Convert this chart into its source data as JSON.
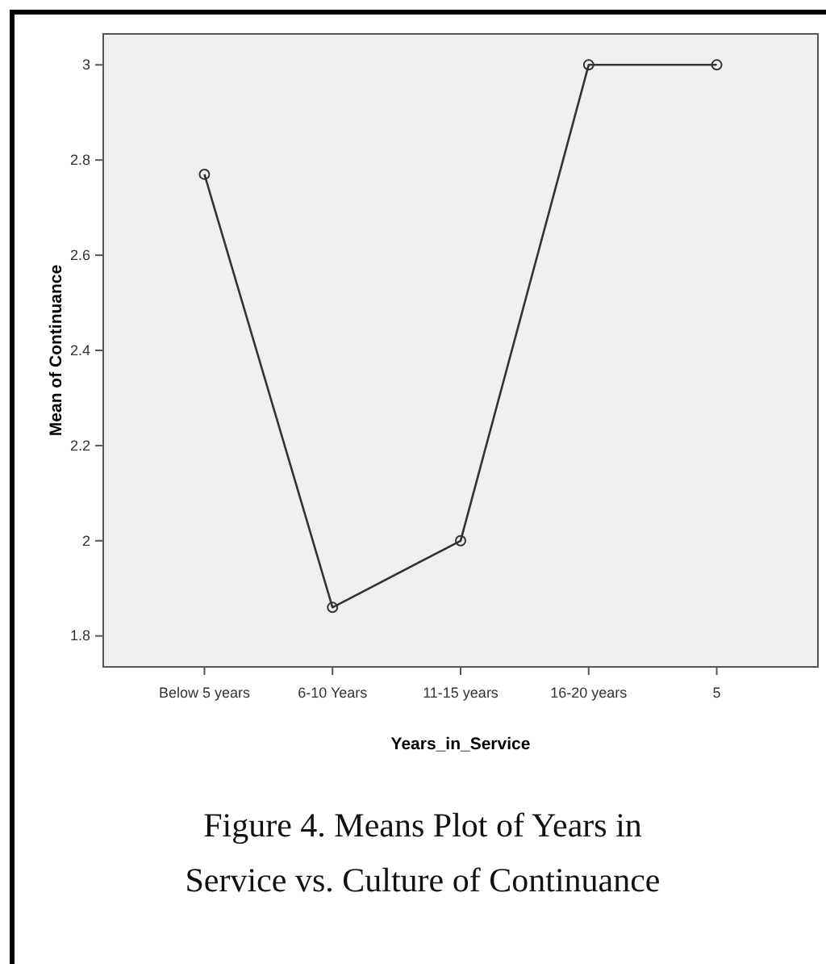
{
  "chart_data": {
    "type": "line",
    "xlabel": "Years_in_Service",
    "ylabel": "Mean of Continuance",
    "categories": [
      "Below 5 years",
      "6-10 Years",
      "11-15 years",
      "16-20 years",
      "5"
    ],
    "series": [
      {
        "color": "#333333",
        "values": [
          2.77,
          1.86,
          2.0,
          3.0,
          3.0
        ]
      }
    ],
    "ylim": [
      1.735,
      3.065
    ],
    "yticks": [
      1.8,
      2,
      2.2,
      2.4,
      2.6,
      2.8,
      3
    ],
    "grid": false,
    "marker": "circle",
    "line_style": "solid",
    "annotations": [
      "Figure 4. Means Plot of Years in Service vs. Culture of Continuance"
    ]
  }
}
